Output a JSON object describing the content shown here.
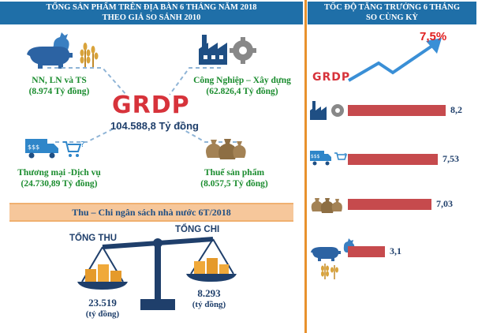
{
  "left_header": {
    "line1": "TỔNG SẢN PHẨM TRÊN ĐỊA BÀN 6 THÁNG NĂM 2018",
    "line2": "THEO GIÁ SO SÁNH 2010"
  },
  "right_header": {
    "line1": "TỐC ĐỘ TĂNG TRƯỞNG 6 THÁNG",
    "line2": "SO CÙNG KỲ"
  },
  "grdp": {
    "label": "GRDP",
    "total": "104.588,8 Tỷ đồng"
  },
  "sectors": [
    {
      "name": "NN, LN và TS",
      "value": "(8.974 Tỷ đồng)"
    },
    {
      "name": "Công Nghiệp – Xây dựng",
      "value": "(62.826,4 Tỷ đồng)"
    },
    {
      "name": "Thương mại -Dịch vụ",
      "value": "(24.730,89 Tỷ đồng)"
    },
    {
      "name": "Thuế sản phẩm",
      "value": "(8.057,5 Tỷ đồng)"
    }
  ],
  "budget": {
    "title": "Thu – Chi ngân sách nhà nước 6T/2018",
    "revenue_label": "TỔNG THU",
    "revenue_value": "23.519",
    "revenue_unit": "(tỷ đồng)",
    "expense_label": "TỔNG CHI",
    "expense_value": "8.293",
    "expense_unit": "(tỷ đồng)"
  },
  "growth": {
    "grdp_label": "GRDP",
    "grdp_rate": "7,5%",
    "bars": [
      {
        "sector": "industry",
        "value": 8.2,
        "label": "8,2"
      },
      {
        "sector": "trade",
        "value": 7.53,
        "label": "7,53"
      },
      {
        "sector": "tax",
        "value": 7.03,
        "label": "7,03"
      },
      {
        "sector": "agriculture",
        "value": 3.1,
        "label": "3,1"
      }
    ],
    "max": 8.2
  },
  "icons": [
    "chicken-icon",
    "pig-icon",
    "wheat-icon",
    "factory-icon",
    "gear-icon",
    "truck-icon",
    "cart-icon",
    "money-bag-icon",
    "coin-stack-icon",
    "balance-scale-icon",
    "trend-arrow-icon"
  ]
}
